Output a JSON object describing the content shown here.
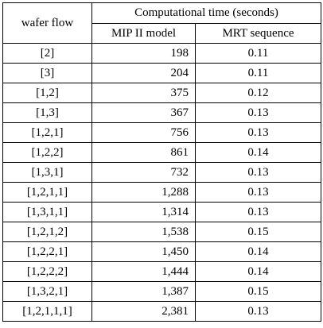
{
  "table": {
    "header": {
      "row_header": "wafer flow",
      "group": "Computational time (seconds)",
      "columns": [
        "MIP II model",
        "MRT sequence"
      ]
    },
    "rows": [
      [
        "[2]",
        "198",
        "0.11"
      ],
      [
        "[3]",
        "204",
        "0.11"
      ],
      [
        "[1,2]",
        "375",
        "0.12"
      ],
      [
        "[1,3]",
        "367",
        "0.13"
      ],
      [
        "[1,2,1]",
        "756",
        "0.13"
      ],
      [
        "[1,2,2]",
        "861",
        "0.14"
      ],
      [
        "[1,3,1]",
        "732",
        "0.13"
      ],
      [
        "[1,2,1,1]",
        "1,288",
        "0.13"
      ],
      [
        "[1,3,1,1]",
        "1,314",
        "0.13"
      ],
      [
        "[1,2,1,2]",
        "1,538",
        "0.15"
      ],
      [
        "[1,2,2,1]",
        "1,450",
        "0.14"
      ],
      [
        "[1,2,2,2]",
        "1,444",
        "0.14"
      ],
      [
        "[1,3,2,1]",
        "1,387",
        "0.15"
      ],
      [
        "[1,2,1,1,1]",
        "2,381",
        "0.13"
      ]
    ]
  }
}
